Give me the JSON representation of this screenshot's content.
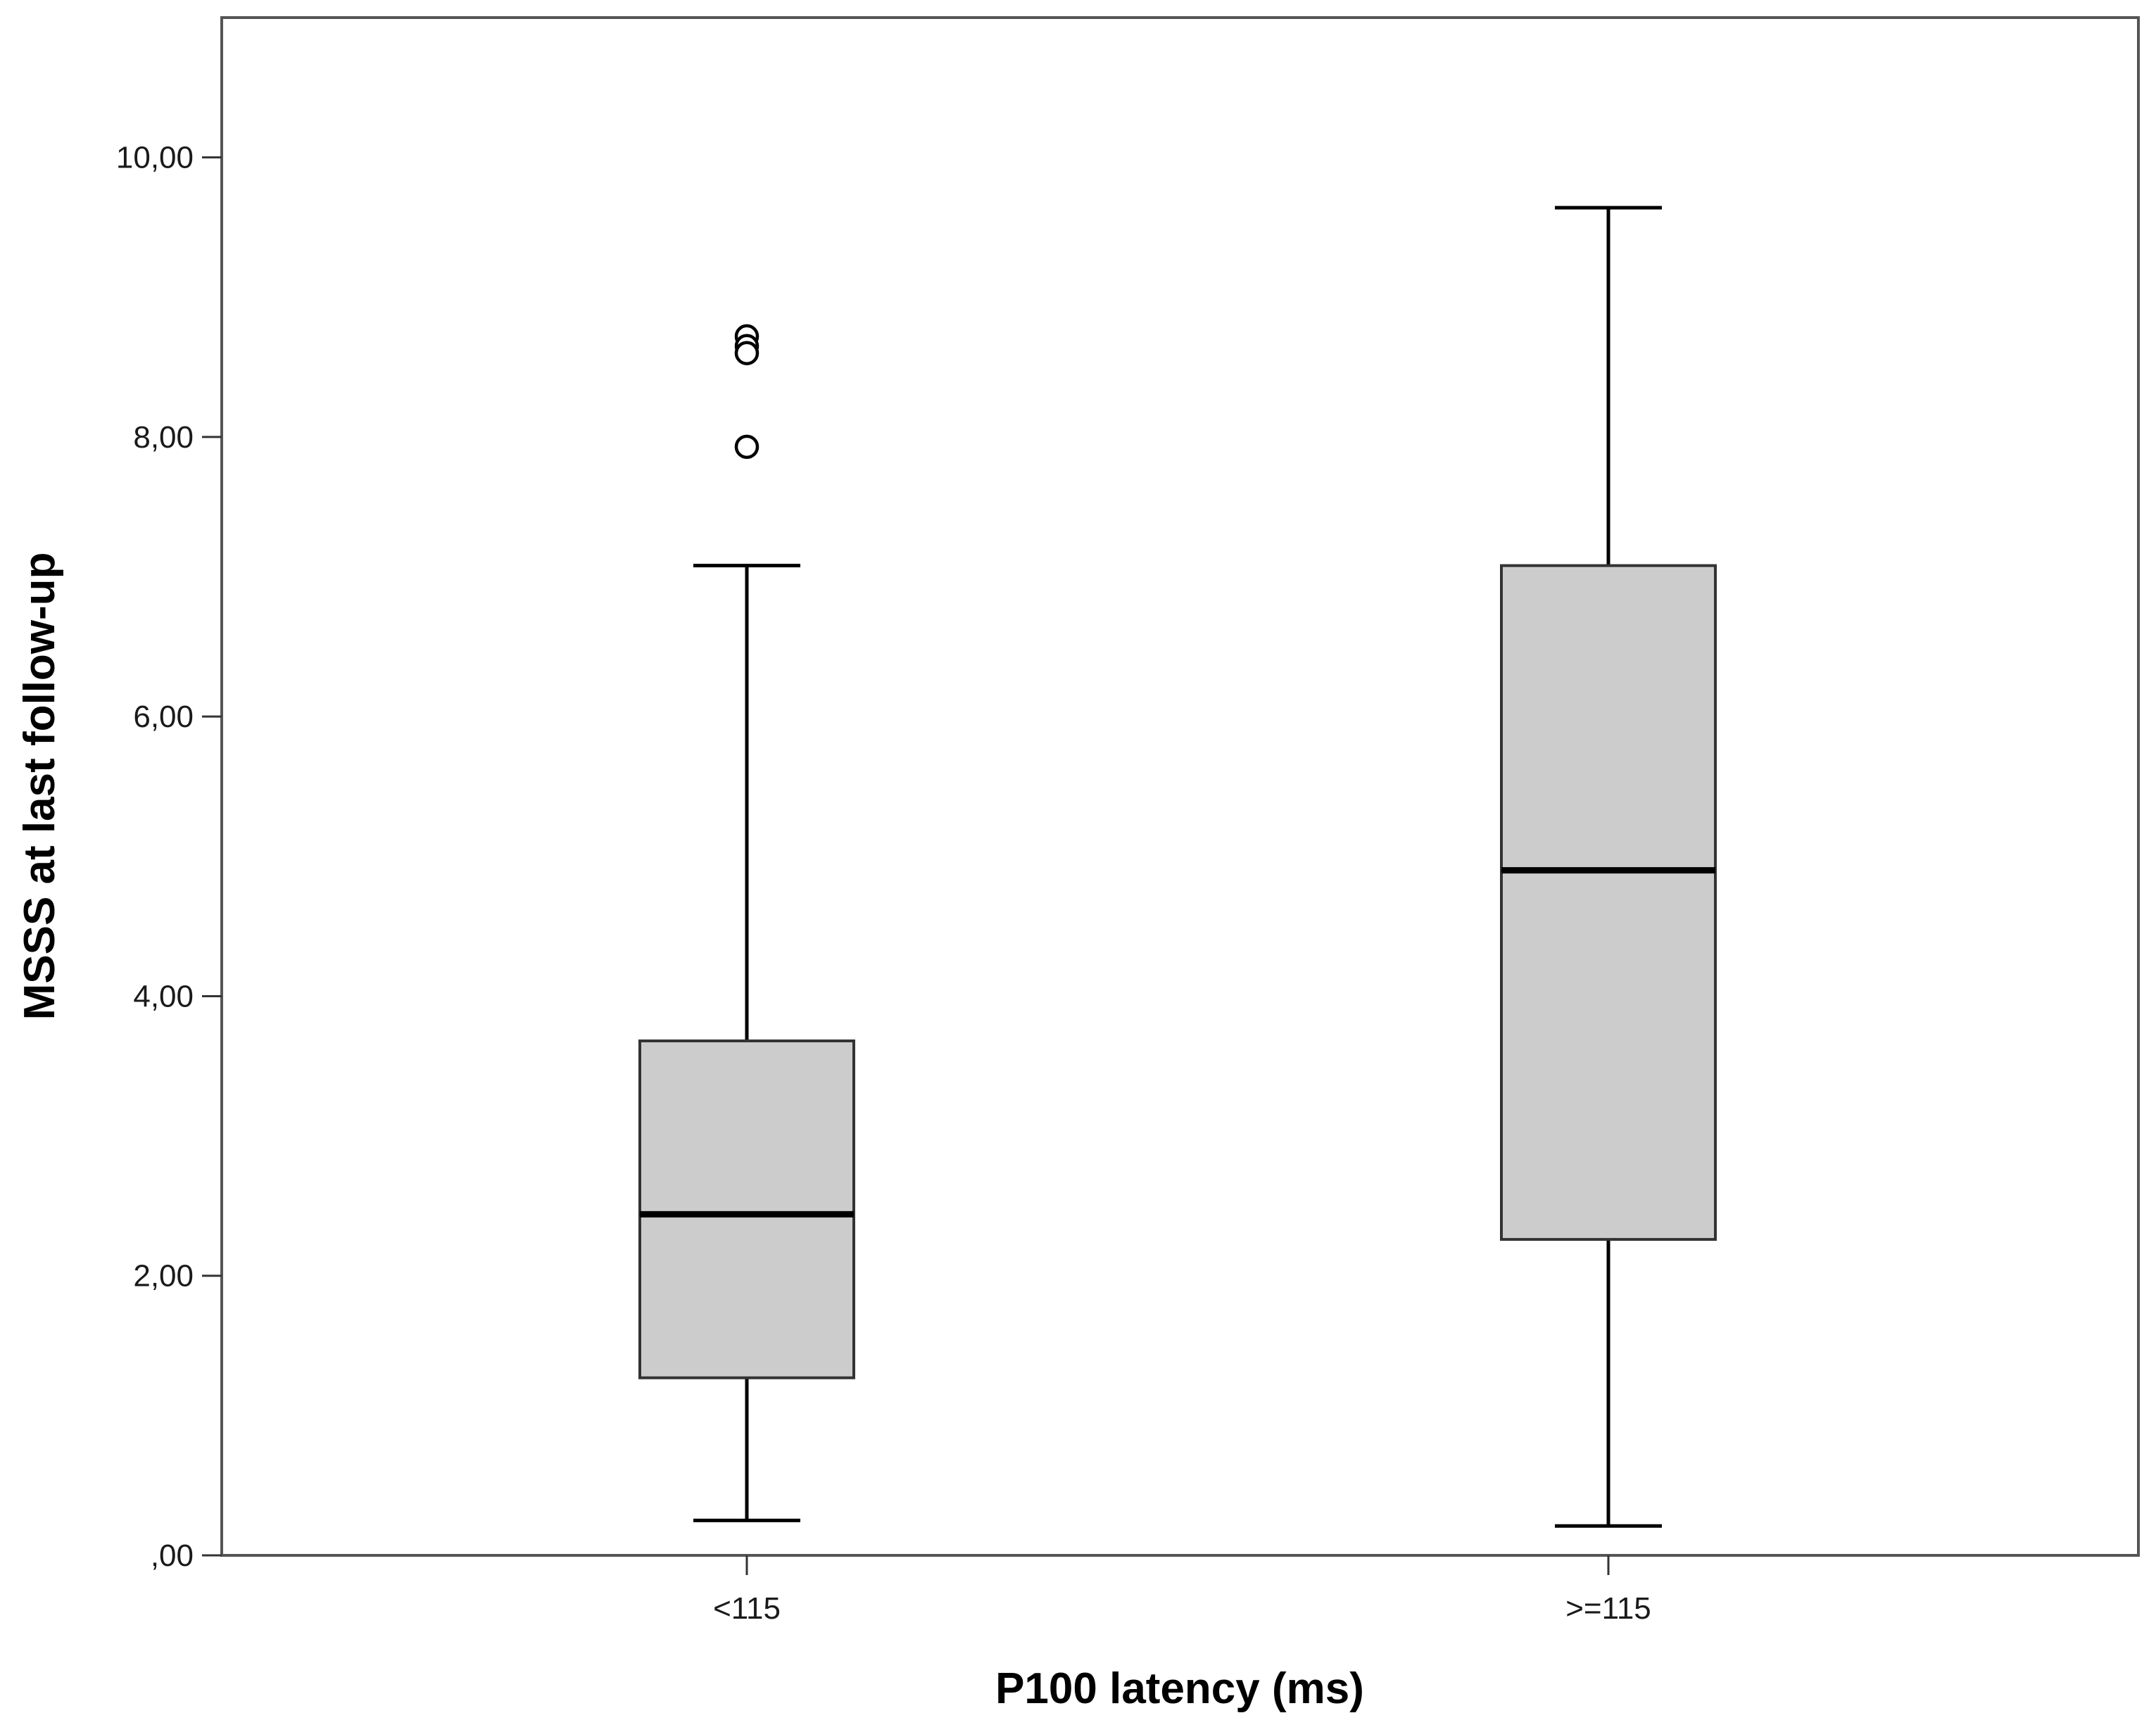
{
  "chart_data": {
    "type": "boxplot",
    "title": "",
    "xlabel": "P100 latency (ms)",
    "ylabel": "MSSS at last follow-up",
    "ylim": [
      0,
      11
    ],
    "y_ticks": [
      0,
      2,
      4,
      6,
      8,
      10
    ],
    "y_tick_labels": [
      ",00",
      "2,00",
      "4,00",
      "6,00",
      "8,00",
      "10,00"
    ],
    "categories": [
      "<115",
      ">=115"
    ],
    "boxes": [
      {
        "category": "<115",
        "whisker_low": 0.25,
        "q1": 1.27,
        "median": 2.44,
        "q3": 3.68,
        "whisker_high": 7.08,
        "outliers": [
          8.72,
          8.65,
          8.6,
          7.93
        ]
      },
      {
        "category": ">=115",
        "whisker_low": 0.21,
        "q1": 2.26,
        "median": 4.9,
        "q3": 7.08,
        "whisker_high": 9.64,
        "outliers": []
      }
    ],
    "grid": false,
    "colors": {
      "box_fill": "#cccccc",
      "box_edge": "#333333",
      "median": "#000000",
      "whisker": "#000000",
      "frame": "#555555"
    }
  }
}
